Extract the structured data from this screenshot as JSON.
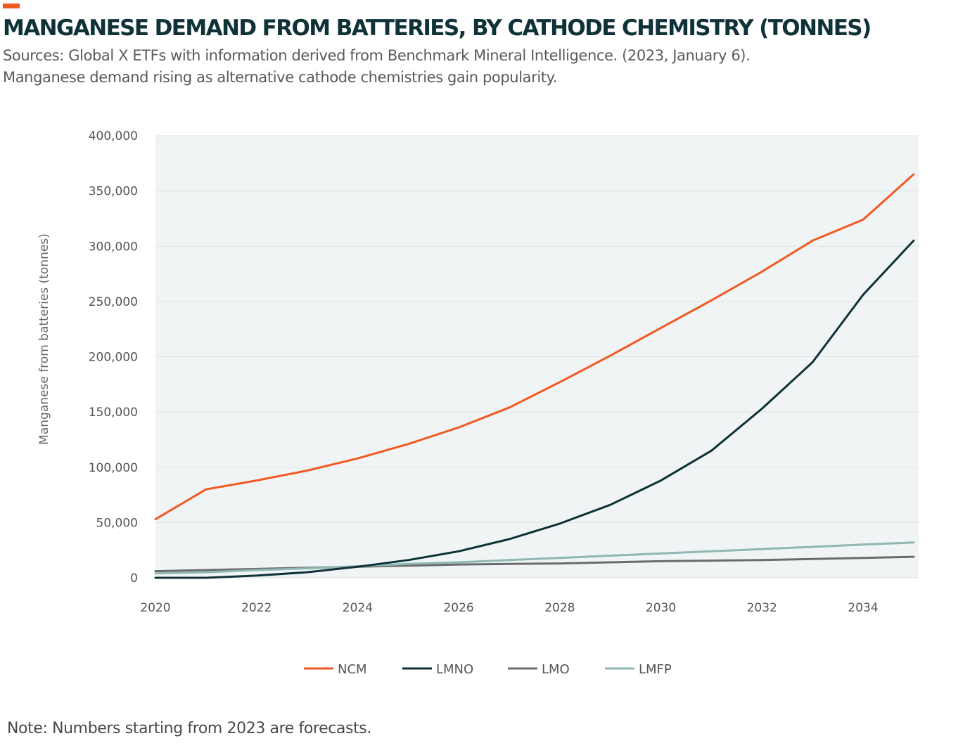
{
  "header": {
    "title": "MANGANESE DEMAND FROM BATTERIES, BY CATHODE CHEMISTRY (TONNES)",
    "subtitle_line1": "Sources: Global X ETFs with information derived from Benchmark Mineral Intelligence. (2023, January 6).",
    "subtitle_line2": "Manganese demand rising as alternative cathode chemistries gain popularity."
  },
  "footer": {
    "note": "Note: Numbers starting from 2023 are forecasts."
  },
  "colors": {
    "accent": "#f05a22",
    "plot_background": "#f1f4f4",
    "gridline": "#dde3e3",
    "NCM": "#f05a22",
    "LMNO": "#0f3138",
    "LMO": "#6b6b6b",
    "LMFP": "#8fb7b3"
  },
  "chart_data": {
    "type": "line",
    "title": "MANGANESE DEMAND FROM BATTERIES, BY CATHODE CHEMISTRY (TONNES)",
    "xlabel": "",
    "ylabel": "Manganese from batteries (tonnes)",
    "xlim": [
      2020,
      2035.1
    ],
    "ylim": [
      0,
      400000
    ],
    "x_ticks": [
      2020,
      2022,
      2024,
      2026,
      2028,
      2030,
      2032,
      2034
    ],
    "x_tick_labels": [
      "2020",
      "2022",
      "2024",
      "2026",
      "2028",
      "2030",
      "2032",
      "2034"
    ],
    "y_ticks": [
      0,
      50000,
      100000,
      150000,
      200000,
      250000,
      300000,
      350000,
      400000
    ],
    "y_tick_labels": [
      "0",
      "50,000",
      "100,000",
      "150,000",
      "200,000",
      "250,000",
      "300,000",
      "350,000",
      "400,000"
    ],
    "grid": true,
    "legend_position": "bottom",
    "x": [
      2020,
      2021,
      2022,
      2023,
      2024,
      2025,
      2026,
      2027,
      2028,
      2029,
      2030,
      2031,
      2032,
      2033,
      2034,
      2035
    ],
    "series": [
      {
        "name": "NCM",
        "values": [
          53000,
          80000,
          88000,
          97000,
          108000,
          121000,
          136000,
          154000,
          177000,
          201000,
          226000,
          251000,
          277000,
          305000,
          324000,
          365000
        ]
      },
      {
        "name": "LMNO",
        "values": [
          0,
          0,
          2000,
          5000,
          10000,
          16000,
          24000,
          35000,
          49000,
          66000,
          88000,
          115000,
          153000,
          195000,
          256000,
          305000
        ]
      },
      {
        "name": "LMO",
        "values": [
          6000,
          7000,
          8000,
          9000,
          10000,
          11000,
          12000,
          12500,
          13000,
          14000,
          15000,
          15500,
          16000,
          17000,
          18000,
          19000
        ]
      },
      {
        "name": "LMFP",
        "values": [
          4000,
          5000,
          7000,
          8500,
          10500,
          12500,
          14000,
          16000,
          18000,
          20000,
          22000,
          24000,
          26000,
          28000,
          30000,
          32000
        ]
      }
    ]
  }
}
